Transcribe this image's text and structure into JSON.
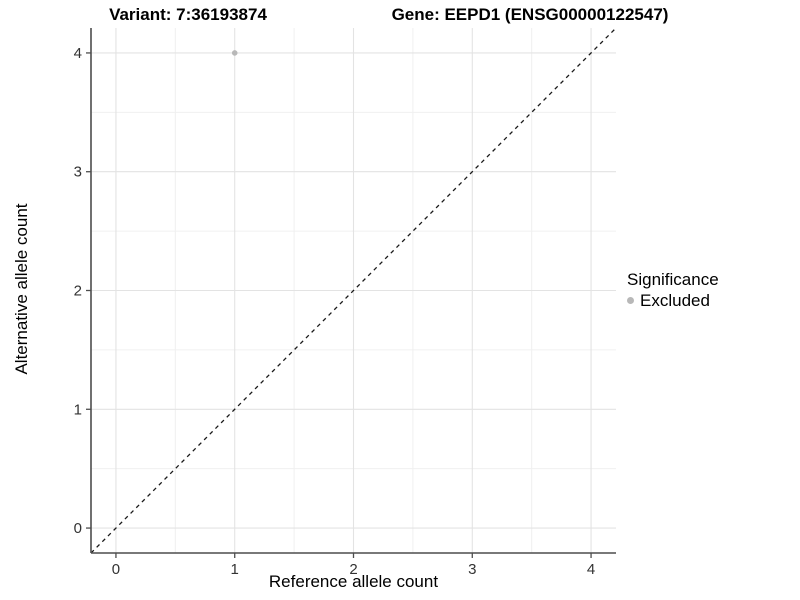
{
  "title": {
    "variant": "Variant: 7:36193874",
    "gene": "Gene: EEPD1 (ENSG00000122547)"
  },
  "chart_data": {
    "type": "scatter",
    "titles": {
      "variant": "Variant: 7:36193874",
      "gene": "Gene: EEPD1 (ENSG00000122547)"
    },
    "xlabel": "Reference allele count",
    "ylabel": "Alternative allele count",
    "xlim": [
      -0.21,
      4.21
    ],
    "ylim": [
      -0.21,
      4.21
    ],
    "x_ticks": [
      0,
      1,
      2,
      3,
      4
    ],
    "y_ticks": [
      0,
      1,
      2,
      3,
      4
    ],
    "minor_ticks_every": 0.5,
    "grid": true,
    "series": [
      {
        "name": "Excluded",
        "color": "#b8b8b8",
        "points": [
          {
            "x": 1,
            "y": 4
          }
        ]
      }
    ],
    "reference_line": {
      "type": "identity",
      "style": "dashed",
      "color": "#1a1a1a",
      "from": [
        -0.21,
        -0.21
      ],
      "to": [
        4.21,
        4.21
      ]
    }
  },
  "legend": {
    "title": "Significance",
    "position": "right",
    "items": [
      {
        "label": "Excluded",
        "color": "#b8b8b8",
        "marker": "circle"
      }
    ]
  },
  "colors": {
    "background": "#ffffff",
    "grid_major": "#e3e3e3",
    "grid_minor": "#f0f0f0",
    "axis_line": "#4d4d4d",
    "tick_text": "#333333",
    "text": "#000000"
  }
}
